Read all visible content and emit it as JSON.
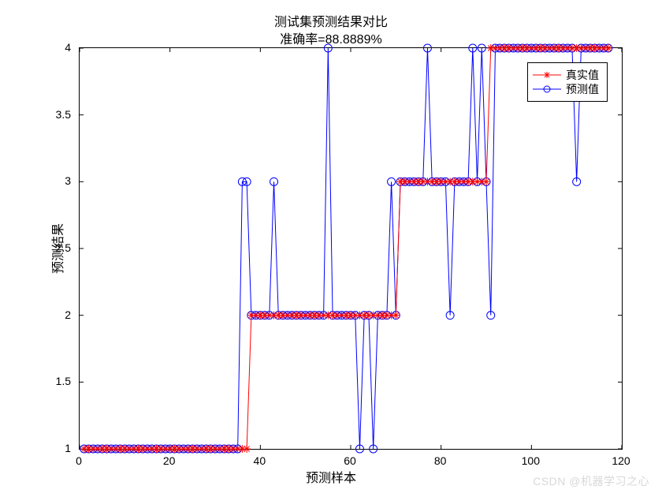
{
  "chart": {
    "type": "line",
    "title_line1": "测试集预测结果对比",
    "title_line2": "准确率=88.8889%",
    "xlabel": "预测样本",
    "ylabel": "预测结果",
    "xlim": [
      0,
      120
    ],
    "ylim": [
      1,
      4
    ],
    "xtick_step": 20,
    "xticks": [
      0,
      20,
      40,
      60,
      80,
      100,
      120
    ],
    "yticks": [
      1,
      1.5,
      2,
      2.5,
      3,
      3.5,
      4
    ],
    "background_color": "#ffffff",
    "axis_color": "#000000",
    "tick_fontsize": 14,
    "label_fontsize": 16,
    "title_fontsize": 16,
    "series": {
      "true": {
        "label": "真实值",
        "color": "#ff0000",
        "marker": "star",
        "marker_size": 5,
        "line_width": 1,
        "x": [
          1,
          2,
          3,
          4,
          5,
          6,
          7,
          8,
          9,
          10,
          11,
          12,
          13,
          14,
          15,
          16,
          17,
          18,
          19,
          20,
          21,
          22,
          23,
          24,
          25,
          26,
          27,
          28,
          29,
          30,
          31,
          32,
          33,
          34,
          35,
          36,
          37,
          38,
          39,
          40,
          41,
          42,
          43,
          44,
          45,
          46,
          47,
          48,
          49,
          50,
          51,
          52,
          53,
          54,
          55,
          56,
          57,
          58,
          59,
          60,
          61,
          62,
          63,
          64,
          65,
          66,
          67,
          68,
          69,
          70,
          71,
          72,
          73,
          74,
          75,
          76,
          77,
          78,
          79,
          80,
          81,
          82,
          83,
          84,
          85,
          86,
          87,
          88,
          89,
          90,
          91,
          92,
          93,
          94,
          95,
          96,
          97,
          98,
          99,
          100,
          101,
          102,
          103,
          104,
          105,
          106,
          107,
          108,
          109,
          110,
          111,
          112,
          113,
          114,
          115,
          116,
          117
        ],
        "y": [
          1,
          1,
          1,
          1,
          1,
          1,
          1,
          1,
          1,
          1,
          1,
          1,
          1,
          1,
          1,
          1,
          1,
          1,
          1,
          1,
          1,
          1,
          1,
          1,
          1,
          1,
          1,
          1,
          1,
          1,
          1,
          1,
          1,
          1,
          1,
          1,
          1,
          2,
          2,
          2,
          2,
          2,
          2,
          2,
          2,
          2,
          2,
          2,
          2,
          2,
          2,
          2,
          2,
          2,
          2,
          2,
          2,
          2,
          2,
          2,
          2,
          2,
          2,
          2,
          2,
          2,
          2,
          2,
          2,
          2,
          3,
          3,
          3,
          3,
          3,
          3,
          3,
          3,
          3,
          3,
          3,
          3,
          3,
          3,
          3,
          3,
          3,
          3,
          3,
          3,
          4,
          4,
          4,
          4,
          4,
          4,
          4,
          4,
          4,
          4,
          4,
          4,
          4,
          4,
          4,
          4,
          4,
          4,
          4,
          4,
          4,
          4,
          4,
          4,
          4,
          4,
          4
        ]
      },
      "pred": {
        "label": "预测值",
        "color": "#0000ff",
        "marker": "circle",
        "marker_size": 5,
        "line_width": 1,
        "x": [
          1,
          2,
          3,
          4,
          5,
          6,
          7,
          8,
          9,
          10,
          11,
          12,
          13,
          14,
          15,
          16,
          17,
          18,
          19,
          20,
          21,
          22,
          23,
          24,
          25,
          26,
          27,
          28,
          29,
          30,
          31,
          32,
          33,
          34,
          35,
          36,
          37,
          38,
          39,
          40,
          41,
          42,
          43,
          44,
          45,
          46,
          47,
          48,
          49,
          50,
          51,
          52,
          53,
          54,
          55,
          56,
          57,
          58,
          59,
          60,
          61,
          62,
          63,
          64,
          65,
          66,
          67,
          68,
          69,
          70,
          71,
          72,
          73,
          74,
          75,
          76,
          77,
          78,
          79,
          80,
          81,
          82,
          83,
          84,
          85,
          86,
          87,
          88,
          89,
          90,
          91,
          92,
          93,
          94,
          95,
          96,
          97,
          98,
          99,
          100,
          101,
          102,
          103,
          104,
          105,
          106,
          107,
          108,
          109,
          110,
          111,
          112,
          113,
          114,
          115,
          116,
          117
        ],
        "y": [
          1,
          1,
          1,
          1,
          1,
          1,
          1,
          1,
          1,
          1,
          1,
          1,
          1,
          1,
          1,
          1,
          1,
          1,
          1,
          1,
          1,
          1,
          1,
          1,
          1,
          1,
          1,
          1,
          1,
          1,
          1,
          1,
          1,
          1,
          1,
          3,
          3,
          2,
          2,
          2,
          2,
          2,
          3,
          2,
          2,
          2,
          2,
          2,
          2,
          2,
          2,
          2,
          2,
          2,
          4,
          2,
          2,
          2,
          2,
          2,
          2,
          1,
          2,
          2,
          1,
          2,
          2,
          2,
          3,
          2,
          3,
          3,
          3,
          3,
          3,
          3,
          4,
          3,
          3,
          3,
          3,
          2,
          3,
          3,
          3,
          3,
          4,
          3,
          4,
          3,
          2,
          4,
          4,
          4,
          4,
          4,
          4,
          4,
          4,
          4,
          4,
          4,
          4,
          4,
          4,
          4,
          4,
          4,
          4,
          3,
          4,
          4,
          4,
          4,
          4,
          4,
          4
        ]
      }
    },
    "legend": {
      "position": "top-right",
      "border_color": "#000000",
      "background": "#ffffff",
      "items": [
        {
          "key": "true",
          "label": "真实值"
        },
        {
          "key": "pred",
          "label": "预测值"
        }
      ]
    },
    "watermark": "CSDN @机器学习之心",
    "watermark_color": "#d8d8d8"
  }
}
